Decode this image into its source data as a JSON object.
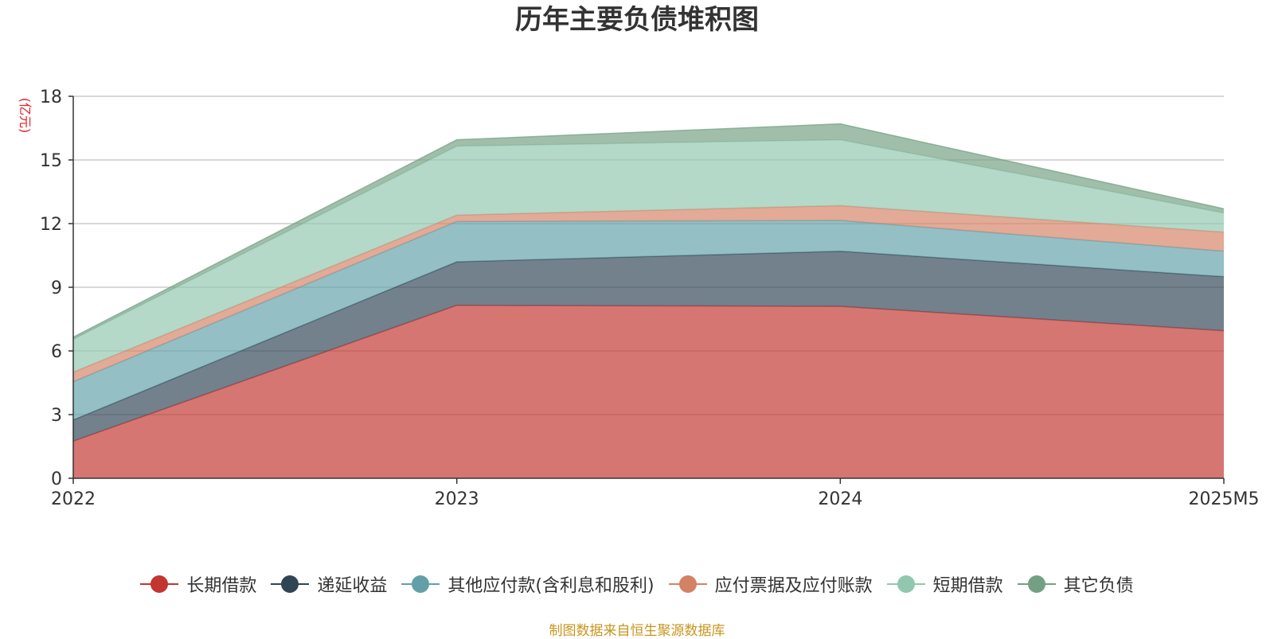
{
  "chart_data": {
    "type": "area",
    "stacked": true,
    "title": "历年主要负债堆积图",
    "ylabel": "(亿元)",
    "xlabel": "",
    "categories": [
      "2022",
      "2023",
      "2024",
      "2025M5"
    ],
    "ylim": [
      0,
      18
    ],
    "yticks": [
      0,
      3,
      6,
      9,
      12,
      15,
      18
    ],
    "grid": true,
    "legend_position": "bottom",
    "series": [
      {
        "name": "长期借款",
        "color": "#c23531",
        "values": [
          1.75,
          8.15,
          8.1,
          6.95
        ]
      },
      {
        "name": "递延收益",
        "color": "#2f4554",
        "values": [
          1.0,
          2.05,
          2.6,
          2.55
        ]
      },
      {
        "name": "其他应付款(含利息和股利)",
        "color": "#61a0a8",
        "values": [
          1.8,
          1.9,
          1.45,
          1.2
        ]
      },
      {
        "name": "应付票据及应付账款",
        "color": "#d48265",
        "values": [
          0.45,
          0.3,
          0.7,
          0.9
        ]
      },
      {
        "name": "短期借款",
        "color": "#91c7ae",
        "values": [
          1.55,
          3.25,
          3.1,
          0.9
        ]
      },
      {
        "name": "其它负债",
        "color": "#749f83",
        "values": [
          0.1,
          0.3,
          0.75,
          0.2
        ]
      }
    ]
  },
  "source_note": "制图数据来自恒生聚源数据库"
}
